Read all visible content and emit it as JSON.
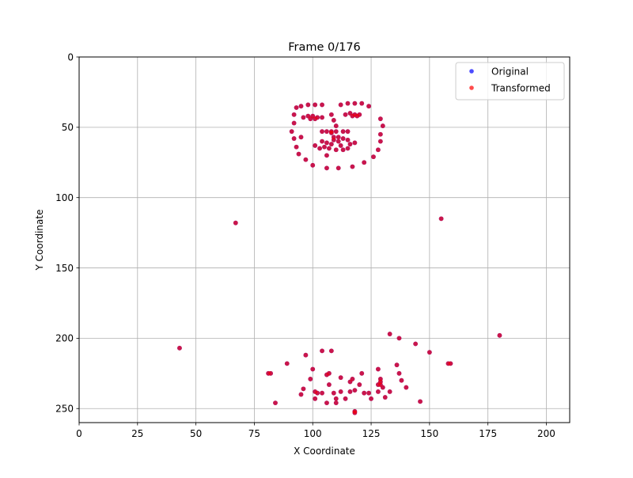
{
  "chart_data": {
    "type": "scatter",
    "title": "Frame 0/176",
    "xlabel": "X Coordinate",
    "ylabel": "Y Coordinate",
    "xlim": [
      0,
      210
    ],
    "ylim": [
      260,
      0
    ],
    "y_inverted": true,
    "grid": true,
    "legend_position": "top-right",
    "x_ticks": [
      0,
      25,
      50,
      75,
      100,
      125,
      150,
      175,
      200
    ],
    "y_ticks": [
      0,
      50,
      100,
      150,
      200,
      250
    ],
    "series": [
      {
        "name": "Original",
        "color": "#0000ff",
        "points": [
          [
            92,
            41
          ],
          [
            93,
            36
          ],
          [
            95,
            35
          ],
          [
            98,
            34
          ],
          [
            101,
            34
          ],
          [
            104,
            34
          ],
          [
            96,
            43
          ],
          [
            98,
            42
          ],
          [
            100,
            42
          ],
          [
            102,
            43
          ],
          [
            99,
            44
          ],
          [
            101,
            44
          ],
          [
            104,
            43
          ],
          [
            112,
            34
          ],
          [
            115,
            33
          ],
          [
            118,
            33
          ],
          [
            121,
            33
          ],
          [
            124,
            35
          ],
          [
            114,
            41
          ],
          [
            116,
            40
          ],
          [
            118,
            41
          ],
          [
            120,
            41
          ],
          [
            117,
            42
          ],
          [
            119,
            42
          ],
          [
            92,
            47
          ],
          [
            91,
            53
          ],
          [
            92,
            58
          ],
          [
            93,
            64
          ],
          [
            94,
            69
          ],
          [
            97,
            73
          ],
          [
            100,
            77
          ],
          [
            106,
            79
          ],
          [
            111,
            79
          ],
          [
            117,
            78
          ],
          [
            122,
            75
          ],
          [
            126,
            71
          ],
          [
            128,
            66
          ],
          [
            129,
            60
          ],
          [
            129,
            55
          ],
          [
            130,
            49
          ],
          [
            129,
            44
          ],
          [
            108,
            41
          ],
          [
            109,
            45
          ],
          [
            110,
            49
          ],
          [
            110,
            53
          ],
          [
            108,
            53
          ],
          [
            106,
            53
          ],
          [
            104,
            53
          ],
          [
            113,
            53
          ],
          [
            115,
            53
          ],
          [
            111,
            57
          ],
          [
            95,
            57
          ],
          [
            101,
            63
          ],
          [
            103,
            65
          ],
          [
            105,
            64
          ],
          [
            107,
            65
          ],
          [
            108,
            62
          ],
          [
            109,
            59
          ],
          [
            111,
            60
          ],
          [
            112,
            63
          ],
          [
            113,
            66
          ],
          [
            115,
            65
          ],
          [
            116,
            62
          ],
          [
            118,
            61
          ],
          [
            115,
            59
          ],
          [
            113,
            58
          ],
          [
            109,
            57
          ],
          [
            106,
            61
          ],
          [
            104,
            60
          ],
          [
            106,
            70
          ],
          [
            110,
            66
          ],
          [
            108,
            54
          ],
          [
            67,
            118
          ],
          [
            155,
            115
          ],
          [
            43,
            207
          ],
          [
            133,
            197
          ],
          [
            137,
            200
          ],
          [
            144,
            204
          ],
          [
            150,
            210
          ],
          [
            158,
            218
          ],
          [
            159,
            218
          ],
          [
            180,
            198
          ],
          [
            97,
            212
          ],
          [
            104,
            209
          ],
          [
            108,
            209
          ],
          [
            89,
            218
          ],
          [
            81,
            225
          ],
          [
            82,
            225
          ],
          [
            100,
            222
          ],
          [
            107,
            225
          ],
          [
            112,
            228
          ],
          [
            117,
            229
          ],
          [
            121,
            225
          ],
          [
            128,
            222
          ],
          [
            99,
            229
          ],
          [
            104,
            239
          ],
          [
            109,
            239
          ],
          [
            112,
            238
          ],
          [
            116,
            238
          ],
          [
            118,
            237
          ],
          [
            122,
            239
          ],
          [
            124,
            239
          ],
          [
            128,
            238
          ],
          [
            130,
            235
          ],
          [
            133,
            238
          ],
          [
            136,
            219
          ],
          [
            137,
            225
          ],
          [
            138,
            230
          ],
          [
            140,
            235
          ],
          [
            95,
            240
          ],
          [
            96,
            236
          ],
          [
            101,
            238
          ],
          [
            102,
            239
          ],
          [
            101,
            243
          ],
          [
            107,
            233
          ],
          [
            110,
            243
          ],
          [
            114,
            243
          ],
          [
            116,
            231
          ],
          [
            120,
            233
          ],
          [
            125,
            243
          ],
          [
            129,
            229
          ],
          [
            129,
            231
          ],
          [
            129,
            233
          ],
          [
            131,
            242
          ],
          [
            84,
            246
          ],
          [
            106,
            246
          ],
          [
            110,
            246
          ],
          [
            118,
            252
          ],
          [
            118,
            253
          ],
          [
            146,
            245
          ],
          [
            128,
            233
          ],
          [
            106,
            226
          ]
        ]
      },
      {
        "name": "Transformed",
        "color": "#ff0000",
        "points": [
          [
            92,
            41
          ],
          [
            93,
            36
          ],
          [
            95,
            35
          ],
          [
            98,
            34
          ],
          [
            101,
            34
          ],
          [
            104,
            34
          ],
          [
            96,
            43
          ],
          [
            98,
            42
          ],
          [
            100,
            42
          ],
          [
            102,
            43
          ],
          [
            99,
            44
          ],
          [
            101,
            44
          ],
          [
            104,
            43
          ],
          [
            112,
            34
          ],
          [
            115,
            33
          ],
          [
            118,
            33
          ],
          [
            121,
            33
          ],
          [
            124,
            35
          ],
          [
            114,
            41
          ],
          [
            116,
            40
          ],
          [
            118,
            41
          ],
          [
            120,
            41
          ],
          [
            117,
            42
          ],
          [
            119,
            42
          ],
          [
            92,
            47
          ],
          [
            91,
            53
          ],
          [
            92,
            58
          ],
          [
            93,
            64
          ],
          [
            94,
            69
          ],
          [
            97,
            73
          ],
          [
            100,
            77
          ],
          [
            106,
            79
          ],
          [
            111,
            79
          ],
          [
            117,
            78
          ],
          [
            122,
            75
          ],
          [
            126,
            71
          ],
          [
            128,
            66
          ],
          [
            129,
            60
          ],
          [
            129,
            55
          ],
          [
            130,
            49
          ],
          [
            129,
            44
          ],
          [
            108,
            41
          ],
          [
            109,
            45
          ],
          [
            110,
            49
          ],
          [
            110,
            53
          ],
          [
            108,
            53
          ],
          [
            106,
            53
          ],
          [
            104,
            53
          ],
          [
            113,
            53
          ],
          [
            115,
            53
          ],
          [
            111,
            57
          ],
          [
            95,
            57
          ],
          [
            101,
            63
          ],
          [
            103,
            65
          ],
          [
            105,
            64
          ],
          [
            107,
            65
          ],
          [
            108,
            62
          ],
          [
            109,
            59
          ],
          [
            111,
            60
          ],
          [
            112,
            63
          ],
          [
            113,
            66
          ],
          [
            115,
            65
          ],
          [
            116,
            62
          ],
          [
            118,
            61
          ],
          [
            115,
            59
          ],
          [
            113,
            58
          ],
          [
            109,
            57
          ],
          [
            106,
            61
          ],
          [
            104,
            60
          ],
          [
            106,
            70
          ],
          [
            110,
            66
          ],
          [
            108,
            54
          ],
          [
            67,
            118
          ],
          [
            155,
            115
          ],
          [
            43,
            207
          ],
          [
            133,
            197
          ],
          [
            137,
            200
          ],
          [
            144,
            204
          ],
          [
            150,
            210
          ],
          [
            158,
            218
          ],
          [
            159,
            218
          ],
          [
            180,
            198
          ],
          [
            97,
            212
          ],
          [
            104,
            209
          ],
          [
            108,
            209
          ],
          [
            89,
            218
          ],
          [
            81,
            225
          ],
          [
            82,
            225
          ],
          [
            100,
            222
          ],
          [
            107,
            225
          ],
          [
            112,
            228
          ],
          [
            117,
            229
          ],
          [
            121,
            225
          ],
          [
            128,
            222
          ],
          [
            99,
            229
          ],
          [
            104,
            239
          ],
          [
            109,
            239
          ],
          [
            112,
            238
          ],
          [
            116,
            238
          ],
          [
            118,
            237
          ],
          [
            122,
            239
          ],
          [
            124,
            239
          ],
          [
            128,
            238
          ],
          [
            130,
            235
          ],
          [
            133,
            238
          ],
          [
            136,
            219
          ],
          [
            137,
            225
          ],
          [
            138,
            230
          ],
          [
            140,
            235
          ],
          [
            95,
            240
          ],
          [
            96,
            236
          ],
          [
            101,
            238
          ],
          [
            102,
            239
          ],
          [
            101,
            243
          ],
          [
            107,
            233
          ],
          [
            110,
            243
          ],
          [
            114,
            243
          ],
          [
            116,
            231
          ],
          [
            120,
            233
          ],
          [
            125,
            243
          ],
          [
            129,
            229
          ],
          [
            129,
            231
          ],
          [
            129,
            233
          ],
          [
            131,
            242
          ],
          [
            84,
            246
          ],
          [
            106,
            246
          ],
          [
            110,
            246
          ],
          [
            118,
            252
          ],
          [
            118,
            253
          ],
          [
            146,
            245
          ],
          [
            128,
            233
          ],
          [
            106,
            226
          ]
        ]
      }
    ]
  }
}
